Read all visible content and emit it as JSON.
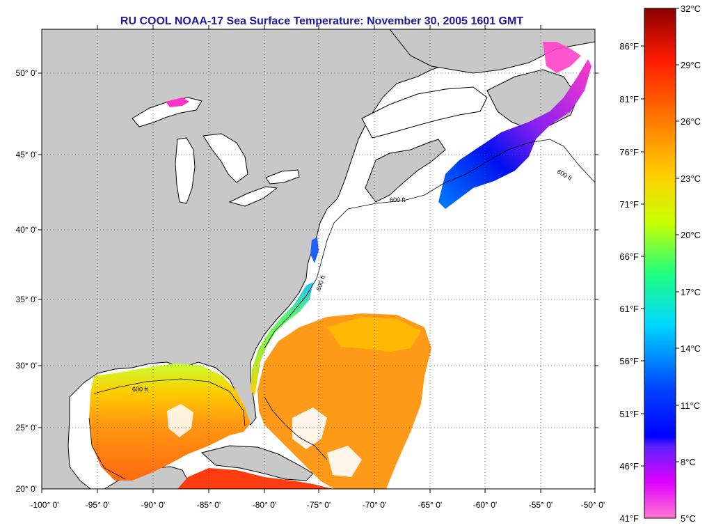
{
  "title": "RU COOL  NOAA-17  Sea Surface Temperature:  November 30, 2005 1601 GMT",
  "lat_labels": [
    "50° 0'",
    "45° 0'",
    "40° 0'",
    "35° 0'",
    "30° 0'",
    "25° 0'",
    "20° 0'"
  ],
  "lon_labels": [
    "-100° 0'",
    "-95° 0'",
    "-90° 0'",
    "-85° 0'",
    "-80° 0'",
    "-75° 0'",
    "-70° 0'",
    "-65° 0'",
    "-60° 0'",
    "-55° 0'",
    "-50° 0'"
  ],
  "bathy_label": "600 ft",
  "colorbar": {
    "fahrenheit_labels": [
      "86°F",
      "81°F",
      "76°F",
      "71°F",
      "66°F",
      "61°F",
      "56°F",
      "51°F",
      "46°F",
      "41°F"
    ],
    "celsius_labels": [
      "32°C",
      "29°C",
      "26°C",
      "23°C",
      "20°C",
      "17°C",
      "14°C",
      "11°C",
      "8°C",
      "5°C"
    ],
    "colors": [
      "#8b0000",
      "#ff0000",
      "#ff6a00",
      "#ffa000",
      "#ffff00",
      "#7fff00",
      "#00e070",
      "#00c8ff",
      "#0060ff",
      "#0000ff",
      "#8020ff",
      "#ff00ff",
      "#ff69c8"
    ]
  },
  "colors": {
    "land": "#c8c8c8",
    "ocean_nodata": "#ffffff",
    "title": "#1a1aa6",
    "grid": "#555555"
  }
}
